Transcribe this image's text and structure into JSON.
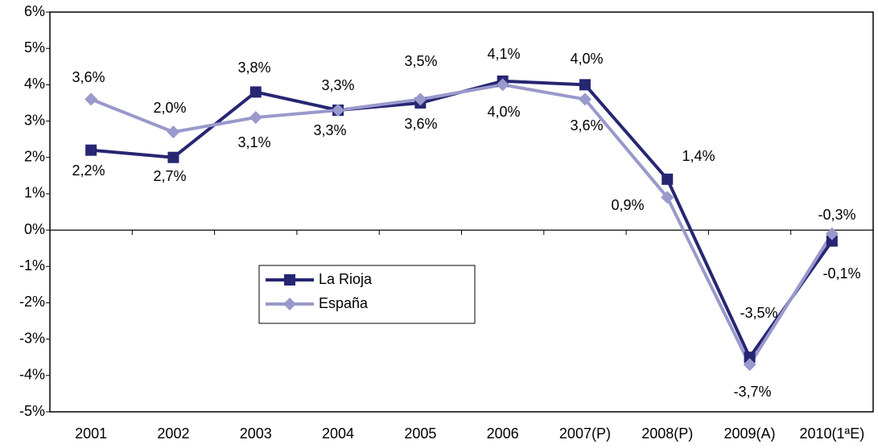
{
  "chart_data": {
    "type": "line",
    "categories": [
      "2001",
      "2002",
      "2003",
      "2004",
      "2005",
      "2006",
      "2007(P)",
      "2008(P)",
      "2009(A)",
      "2010(1ªE)"
    ],
    "series": [
      {
        "name": "La Rioja",
        "color": "#262673",
        "marker": "square",
        "values": [
          2.2,
          2.0,
          3.8,
          3.3,
          3.5,
          4.1,
          4.0,
          1.4,
          -3.5,
          -0.3
        ],
        "value_labels": [
          "2,2%",
          "2,0%",
          "3,8%",
          "3,3%",
          "3,5%",
          "4,1%",
          "4,0%",
          "1,4%",
          "-3,5%",
          "-0,3%"
        ]
      },
      {
        "name": "España",
        "color": "#9999cc",
        "marker": "diamond",
        "values": [
          3.6,
          2.7,
          3.1,
          3.3,
          3.6,
          4.0,
          3.6,
          0.9,
          -3.7,
          -0.1
        ],
        "value_labels": [
          "3,6%",
          "2,7%",
          "3,1%",
          "3,3%",
          "3,6%",
          "4,0%",
          "3,6%",
          "0,9%",
          "-3,7%",
          "-0,1%"
        ]
      }
    ],
    "ylim": [
      -5,
      6
    ],
    "yticks": [
      {
        "value": -5,
        "label": "-5%"
      },
      {
        "value": -4,
        "label": "-4%"
      },
      {
        "value": -3,
        "label": "-3%"
      },
      {
        "value": -2,
        "label": "-2%"
      },
      {
        "value": -1,
        "label": "-1%"
      },
      {
        "value": 0,
        "label": "0%"
      },
      {
        "value": 1,
        "label": "1%"
      },
      {
        "value": 2,
        "label": "2%"
      },
      {
        "value": 3,
        "label": "3%"
      },
      {
        "value": 4,
        "label": "4%"
      },
      {
        "value": 5,
        "label": "5%"
      },
      {
        "value": 6,
        "label": "6%"
      }
    ],
    "grid": false,
    "legend": "center-left"
  }
}
